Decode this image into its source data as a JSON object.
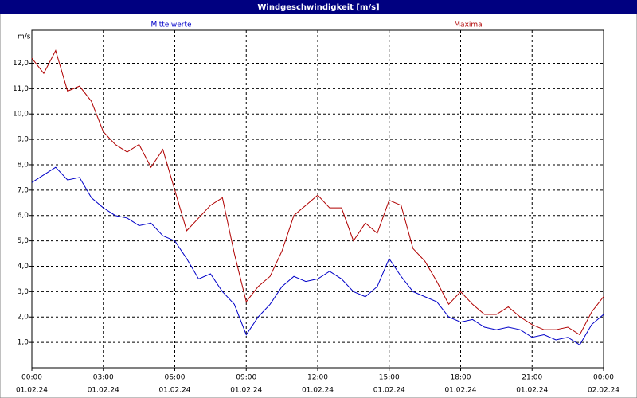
{
  "chart_data": {
    "type": "line",
    "title": "Windgeschwindigkeit [m/s]",
    "y_label": "m/s",
    "x": [
      0,
      0.5,
      1,
      1.5,
      2,
      2.5,
      3,
      3.5,
      4,
      4.5,
      5,
      5.5,
      6,
      6.5,
      7,
      7.5,
      8,
      8.5,
      9,
      9.5,
      10,
      10.5,
      11,
      11.5,
      12,
      12.5,
      13,
      13.5,
      14,
      14.5,
      15,
      15.5,
      16,
      16.5,
      17,
      17.5,
      18,
      18.5,
      19,
      19.5,
      20,
      20.5,
      21,
      21.5,
      22,
      22.5,
      23,
      23.5,
      24
    ],
    "series": [
      {
        "name": "Mittelwerte",
        "color": "#0000c8",
        "values": [
          7.3,
          7.6,
          7.9,
          7.4,
          7.5,
          6.7,
          6.3,
          6.0,
          5.9,
          5.6,
          5.7,
          5.2,
          5.0,
          4.3,
          3.5,
          3.7,
          3.0,
          2.5,
          1.3,
          2.0,
          2.5,
          3.2,
          3.6,
          3.4,
          3.5,
          3.8,
          3.5,
          3.0,
          2.8,
          3.2,
          4.3,
          3.6,
          3.0,
          2.8,
          2.6,
          2.0,
          1.8,
          1.9,
          1.6,
          1.5,
          1.6,
          1.5,
          1.2,
          1.3,
          1.1,
          1.2,
          0.9,
          1.7,
          2.1
        ]
      },
      {
        "name": "Maxima",
        "color": "#b00000",
        "values": [
          12.2,
          11.6,
          12.5,
          10.9,
          11.1,
          10.5,
          9.3,
          8.8,
          8.5,
          8.8,
          7.9,
          8.6,
          7.0,
          5.4,
          5.9,
          6.4,
          6.7,
          4.5,
          2.6,
          3.2,
          3.6,
          4.6,
          6.0,
          6.4,
          6.8,
          6.3,
          6.3,
          5.0,
          5.7,
          5.3,
          6.6,
          6.4,
          4.7,
          4.2,
          3.4,
          2.5,
          3.0,
          2.5,
          2.1,
          2.1,
          2.4,
          2.0,
          1.7,
          1.5,
          1.5,
          1.6,
          1.3,
          2.2,
          2.8
        ]
      }
    ],
    "xlim": [
      0,
      24
    ],
    "xticks": [
      {
        "value": 0,
        "label": "00:00"
      },
      {
        "value": 3,
        "label": "03:00"
      },
      {
        "value": 6,
        "label": "06:00"
      },
      {
        "value": 9,
        "label": "09:00"
      },
      {
        "value": 12,
        "label": "12:00"
      },
      {
        "value": 15,
        "label": "15:00"
      },
      {
        "value": 18,
        "label": "18:00"
      },
      {
        "value": 21,
        "label": "21:00"
      },
      {
        "value": 24,
        "label": "00:00"
      }
    ],
    "xtick_dates": [
      "01.02.24",
      "01.02.24",
      "01.02.24",
      "01.02.24",
      "01.02.24",
      "01.02.24",
      "01.02.24",
      "01.02.24",
      "02.02.24"
    ],
    "ylim": [
      0,
      13.3
    ],
    "yticks": [
      {
        "value": 1,
        "label": "1,0"
      },
      {
        "value": 2,
        "label": "2,0"
      },
      {
        "value": 3,
        "label": "3,0"
      },
      {
        "value": 4,
        "label": "4,0"
      },
      {
        "value": 5,
        "label": "5,0"
      },
      {
        "value": 6,
        "label": "6,0"
      },
      {
        "value": 7,
        "label": "7,0"
      },
      {
        "value": 8,
        "label": "8,0"
      },
      {
        "value": 9,
        "label": "9,0"
      },
      {
        "value": 10,
        "label": "10,0"
      },
      {
        "value": 11,
        "label": "11,0"
      },
      {
        "value": 12,
        "label": "12,0"
      }
    ],
    "grid": true
  }
}
